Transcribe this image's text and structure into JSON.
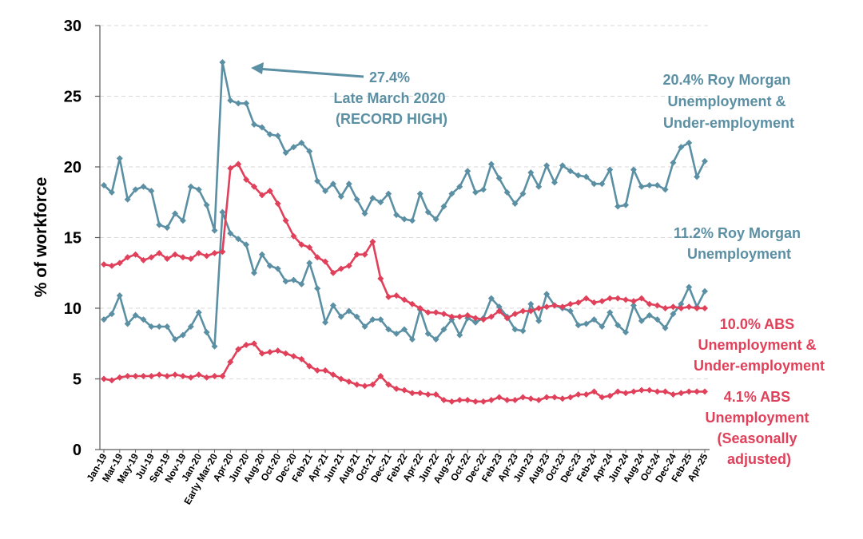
{
  "chart_data": {
    "type": "line",
    "title": "",
    "xlabel": "",
    "ylabel": "% of workforce",
    "ylim": [
      0,
      30
    ],
    "yticks": [
      0,
      5,
      10,
      15,
      20,
      25,
      30
    ],
    "grid": true,
    "x_tick_labels": [
      "Jan-19",
      "Mar-19",
      "May-19",
      "Jul-19",
      "Sep-19",
      "Nov-19",
      "Jan-20",
      "Early Mar-20",
      "Apr-20",
      "Jun-20",
      "Aug-20",
      "Oct-20",
      "Dec-20",
      "Feb-21",
      "Apr-21",
      "Jun-21",
      "Aug-21",
      "Oct-21",
      "Dec-21",
      "Feb-22",
      "Apr-22",
      "Jun-22",
      "Aug-22",
      "Oct-22",
      "Dec-22",
      "Feb-23",
      "Apr-23",
      "Jun-23",
      "Aug-23",
      "Oct-23",
      "Dec-23",
      "Feb-24",
      "Apr-24",
      "Jun-24",
      "Aug-24",
      "Oct-24",
      "Dec-24",
      "Feb-25",
      "Apr-25"
    ],
    "colors": {
      "roy_morgan": "#5b8fa3",
      "abs": "#e0405a"
    },
    "series": [
      {
        "name": "Roy Morgan Unemployment & Under-employment",
        "color": "#5b8fa3",
        "values": [
          18.7,
          18.2,
          20.6,
          17.7,
          18.4,
          18.6,
          18.3,
          15.9,
          15.7,
          16.7,
          16.2,
          18.6,
          18.4,
          17.3,
          15.5,
          27.4,
          24.7,
          24.5,
          24.5,
          23.0,
          22.8,
          22.3,
          22.2,
          21.0,
          21.4,
          21.7,
          21.1,
          19.0,
          18.3,
          18.8,
          17.9,
          18.8,
          17.7,
          16.7,
          17.8,
          17.5,
          18.1,
          16.6,
          16.3,
          16.2,
          18.1,
          16.8,
          16.3,
          17.2,
          18.1,
          18.6,
          19.7,
          18.2,
          18.4,
          20.2,
          19.2,
          18.2,
          17.4,
          18.1,
          19.6,
          18.6,
          20.1,
          18.9,
          20.1,
          19.7,
          19.4,
          19.3,
          18.8,
          18.8,
          19.8,
          17.2,
          17.3,
          19.8,
          18.6,
          18.7,
          18.7,
          18.4,
          20.3,
          21.4,
          21.7,
          19.3,
          20.4
        ]
      },
      {
        "name": "Roy Morgan Unemployment",
        "color": "#5b8fa3",
        "values": [
          9.2,
          9.6,
          10.9,
          8.9,
          9.5,
          9.2,
          8.7,
          8.7,
          8.7,
          7.8,
          8.1,
          8.7,
          9.7,
          8.3,
          7.3,
          16.8,
          15.3,
          14.9,
          14.5,
          12.5,
          13.8,
          13.0,
          12.8,
          11.9,
          12.0,
          11.7,
          13.2,
          11.4,
          9.0,
          10.2,
          9.4,
          9.8,
          9.4,
          8.7,
          9.2,
          9.2,
          8.5,
          8.2,
          8.5,
          7.8,
          9.9,
          8.2,
          7.8,
          8.5,
          9.2,
          8.1,
          9.3,
          9.0,
          9.3,
          10.7,
          10.1,
          9.4,
          8.5,
          8.4,
          10.3,
          9.1,
          11.0,
          10.2,
          10.0,
          9.8,
          8.8,
          8.9,
          9.2,
          8.7,
          9.7,
          8.8,
          8.3,
          10.2,
          9.1,
          9.5,
          9.2,
          8.6,
          9.6,
          10.3,
          11.5,
          10.1,
          11.2
        ]
      },
      {
        "name": "ABS Unemployment & Under-employment",
        "color": "#e0405a",
        "values": [
          13.1,
          13.0,
          13.2,
          13.6,
          13.8,
          13.4,
          13.6,
          13.9,
          13.5,
          13.8,
          13.6,
          13.5,
          13.9,
          13.7,
          13.9,
          14.0,
          19.9,
          20.2,
          19.1,
          18.6,
          18.0,
          18.3,
          17.4,
          16.2,
          15.1,
          14.5,
          14.3,
          13.6,
          13.3,
          12.5,
          12.8,
          13.0,
          13.8,
          13.8,
          14.7,
          12.1,
          10.8,
          10.9,
          10.6,
          10.3,
          10.0,
          9.7,
          9.7,
          9.6,
          9.4,
          9.4,
          9.5,
          9.3,
          9.2,
          9.4,
          9.8,
          9.3,
          9.6,
          9.8,
          9.8,
          10.0,
          10.1,
          10.2,
          10.1,
          10.3,
          10.4,
          10.7,
          10.4,
          10.5,
          10.7,
          10.7,
          10.6,
          10.5,
          10.7,
          10.3,
          10.2,
          10.0,
          10.1,
          10.0,
          10.1,
          10.0,
          10.0
        ]
      },
      {
        "name": "ABS Unemployment (Seasonally adjusted)",
        "color": "#e0405a",
        "values": [
          5.0,
          4.9,
          5.1,
          5.2,
          5.2,
          5.2,
          5.2,
          5.3,
          5.2,
          5.3,
          5.2,
          5.1,
          5.3,
          5.1,
          5.2,
          5.2,
          6.2,
          7.1,
          7.4,
          7.5,
          6.8,
          6.9,
          7.0,
          6.8,
          6.6,
          6.4,
          5.9,
          5.6,
          5.6,
          5.3,
          5.0,
          4.8,
          4.6,
          4.5,
          4.6,
          5.2,
          4.6,
          4.3,
          4.2,
          4.0,
          4.0,
          3.9,
          3.9,
          3.5,
          3.4,
          3.5,
          3.5,
          3.4,
          3.4,
          3.5,
          3.7,
          3.5,
          3.5,
          3.7,
          3.6,
          3.5,
          3.7,
          3.7,
          3.6,
          3.7,
          3.9,
          3.9,
          4.1,
          3.7,
          3.8,
          4.1,
          4.0,
          4.1,
          4.2,
          4.2,
          4.1,
          4.1,
          3.9,
          4.0,
          4.1,
          4.1,
          4.1
        ]
      }
    ],
    "annotations": {
      "peak": [
        "27.4%",
        "Late March 2020",
        "(RECORD HIGH)"
      ],
      "roy_morgan_underemployment": [
        "20.4% Roy Morgan",
        "Unemployment &",
        "Under-employment"
      ],
      "roy_morgan_unemployment": [
        "11.2% Roy Morgan",
        "Unemployment"
      ],
      "abs_underemployment": [
        "10.0% ABS",
        "Unemployment &",
        "Under-employment"
      ],
      "abs_unemployment": [
        "4.1% ABS",
        "Unemployment",
        "(Seasonally",
        "adjusted)"
      ]
    }
  }
}
